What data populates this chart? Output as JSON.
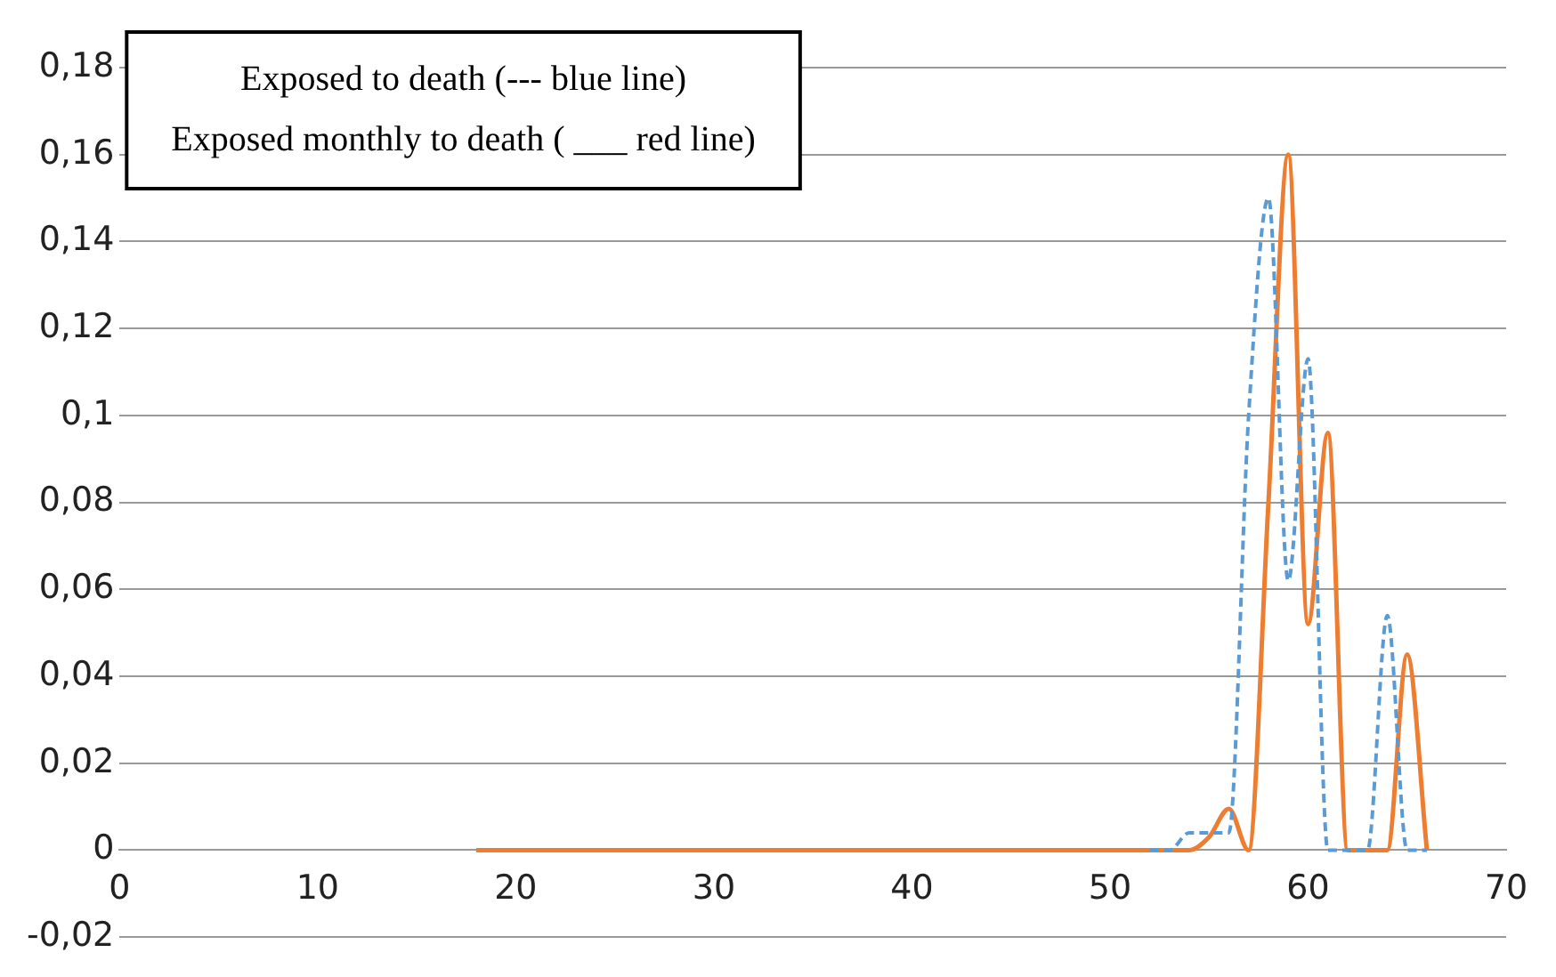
{
  "chart_data": {
    "type": "line",
    "annotations": [
      "Exposed to death (--- blue line)",
      "Exposed monthly to death ( ___ red line)"
    ],
    "series": [
      {
        "color": "#5b9bd5",
        "line_style": "dashed",
        "x": [
          52,
          53,
          54,
          55,
          56,
          57,
          58,
          59,
          60,
          61,
          62,
          63,
          64,
          65,
          66
        ],
        "values": [
          0,
          0,
          0.004,
          0.004,
          0.004,
          0.1,
          0.15,
          0.062,
          0.113,
          0,
          0,
          0,
          0.054,
          0,
          0
        ]
      },
      {
        "color": "#ed7d31",
        "line_style": "solid",
        "x": [
          18,
          30,
          40,
          50,
          53,
          54,
          55,
          56,
          57,
          58,
          59,
          60,
          61,
          62,
          63,
          64,
          65,
          66
        ],
        "values": [
          0,
          0,
          0,
          0,
          0,
          0,
          0.003,
          0.0095,
          0,
          0.08,
          0.16,
          0.052,
          0.096,
          0,
          0,
          0,
          0.045,
          0
        ]
      }
    ],
    "xlim": [
      0,
      70
    ],
    "xticks": [
      0,
      10,
      20,
      30,
      40,
      50,
      60,
      70
    ],
    "ylim": [
      -0.02,
      0.18
    ],
    "yticks": [
      {
        "value": -0.02,
        "label": "-0,02"
      },
      {
        "value": 0,
        "label": "0"
      },
      {
        "value": 0.02,
        "label": "0,02"
      },
      {
        "value": 0.04,
        "label": "0,04"
      },
      {
        "value": 0.06,
        "label": "0,06"
      },
      {
        "value": 0.08,
        "label": "0,08"
      },
      {
        "value": 0.1,
        "label": "0,1"
      },
      {
        "value": 0.12,
        "label": "0,12"
      },
      {
        "value": 0.14,
        "label": "0,14"
      },
      {
        "value": 0.16,
        "label": "0,16"
      },
      {
        "value": 0.18,
        "label": "0,18"
      }
    ],
    "grid": "y",
    "legend": false,
    "marker": "none"
  }
}
